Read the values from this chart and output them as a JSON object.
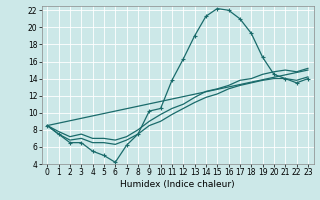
{
  "title": "",
  "xlabel": "Humidex (Indice chaleur)",
  "xlim": [
    -0.5,
    23.5
  ],
  "ylim": [
    4,
    22.5
  ],
  "xticks": [
    0,
    1,
    2,
    3,
    4,
    5,
    6,
    7,
    8,
    9,
    10,
    11,
    12,
    13,
    14,
    15,
    16,
    17,
    18,
    19,
    20,
    21,
    22,
    23
  ],
  "yticks": [
    4,
    6,
    8,
    10,
    12,
    14,
    16,
    18,
    20,
    22
  ],
  "bg_color": "#cce8e8",
  "line_color": "#1a6b6b",
  "grid_color": "#ffffff",
  "line1_x": [
    0,
    1,
    2,
    3,
    4,
    5,
    6,
    7,
    8,
    9,
    10,
    11,
    12,
    13,
    14,
    15,
    16,
    17,
    18,
    19,
    20,
    21,
    22,
    23
  ],
  "line1_y": [
    8.5,
    7.5,
    6.5,
    6.5,
    5.5,
    5.0,
    4.2,
    6.2,
    7.5,
    10.2,
    10.5,
    13.8,
    16.3,
    19.0,
    21.3,
    22.2,
    22.0,
    21.0,
    19.3,
    16.5,
    14.5,
    14.0,
    13.5,
    14.0
  ],
  "line2_x": [
    0,
    1,
    2,
    3,
    4,
    5,
    6,
    7,
    8,
    9,
    10,
    11,
    12,
    13,
    14,
    15,
    16,
    17,
    18,
    19,
    20,
    21,
    22,
    23
  ],
  "line2_y": [
    8.5,
    7.5,
    6.8,
    7.0,
    6.5,
    6.5,
    6.3,
    6.8,
    7.5,
    8.5,
    9.0,
    9.8,
    10.5,
    11.2,
    11.8,
    12.2,
    12.8,
    13.2,
    13.5,
    13.8,
    14.0,
    14.0,
    13.8,
    14.2
  ],
  "line3_x": [
    0,
    1,
    2,
    3,
    4,
    5,
    6,
    7,
    8,
    9,
    10,
    11,
    12,
    13,
    14,
    15,
    16,
    17,
    18,
    19,
    20,
    21,
    22,
    23
  ],
  "line3_y": [
    8.5,
    7.8,
    7.2,
    7.5,
    7.0,
    7.0,
    6.8,
    7.2,
    8.0,
    9.0,
    9.8,
    10.5,
    11.0,
    11.8,
    12.5,
    12.8,
    13.2,
    13.8,
    14.0,
    14.5,
    14.8,
    15.0,
    14.8,
    15.2
  ],
  "line4_x": [
    0,
    23
  ],
  "line4_y": [
    8.5,
    15.0
  ],
  "xlabel_fontsize": 6.5,
  "tick_fontsize": 5.5
}
